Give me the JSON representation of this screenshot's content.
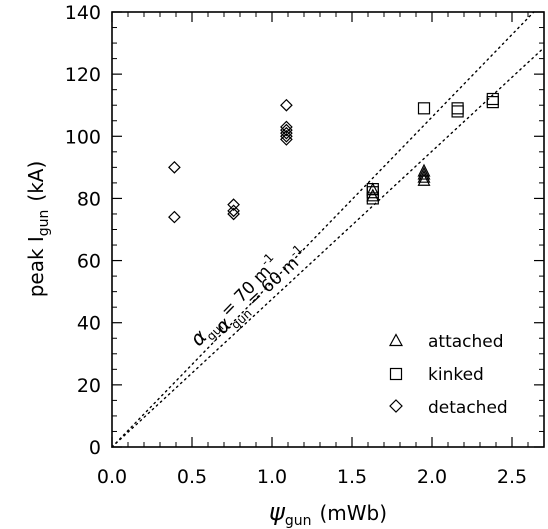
{
  "chart_data": {
    "type": "scatter",
    "xlabel": {
      "main": "ψ",
      "sub": "gun",
      "unit": "(mWb)"
    },
    "ylabel": {
      "main": "peak I",
      "sub": "gun",
      "unit": "(kA)"
    },
    "xlim": [
      0.0,
      2.7
    ],
    "ylim": [
      0,
      140
    ],
    "xticks": [
      "0.0",
      "0.5",
      "1.0",
      "1.5",
      "2.0",
      "2.5"
    ],
    "yticks": [
      "0",
      "20",
      "40",
      "60",
      "80",
      "100",
      "120",
      "140"
    ],
    "xtick_values": [
      0.0,
      0.5,
      1.0,
      1.5,
      2.0,
      2.5
    ],
    "ytick_values": [
      0,
      20,
      40,
      60,
      80,
      100,
      120,
      140
    ],
    "grid": false,
    "legend_position": "bottom-right",
    "series": [
      {
        "name": "attached",
        "marker": "triangle",
        "points": [
          [
            1.63,
            83
          ],
          [
            1.63,
            81
          ],
          [
            1.95,
            86
          ],
          [
            1.95,
            87
          ],
          [
            1.95,
            88
          ],
          [
            1.95,
            89
          ]
        ]
      },
      {
        "name": "kinked",
        "marker": "square",
        "points": [
          [
            1.63,
            83
          ],
          [
            1.63,
            80
          ],
          [
            1.63,
            82
          ],
          [
            1.95,
            109
          ],
          [
            2.16,
            108
          ],
          [
            2.16,
            109
          ],
          [
            2.38,
            111
          ],
          [
            2.38,
            112
          ]
        ]
      },
      {
        "name": "detached",
        "marker": "diamond",
        "points": [
          [
            0.39,
            90
          ],
          [
            0.39,
            74
          ],
          [
            0.76,
            78
          ],
          [
            0.76,
            76
          ],
          [
            0.76,
            75
          ],
          [
            1.09,
            110
          ],
          [
            1.09,
            103
          ],
          [
            1.09,
            102
          ],
          [
            1.09,
            101
          ],
          [
            1.09,
            100
          ],
          [
            1.09,
            99
          ]
        ]
      }
    ],
    "reference_lines": [
      {
        "slope": 53.1,
        "label_main": "α",
        "label_sub": "gun",
        "label_rest": " = 70 m",
        "label_sup": "-1"
      },
      {
        "slope": 47.6,
        "label_main": "α",
        "label_sub": "gun",
        "label_rest": " = 60 m",
        "label_sup": "-1"
      }
    ]
  }
}
